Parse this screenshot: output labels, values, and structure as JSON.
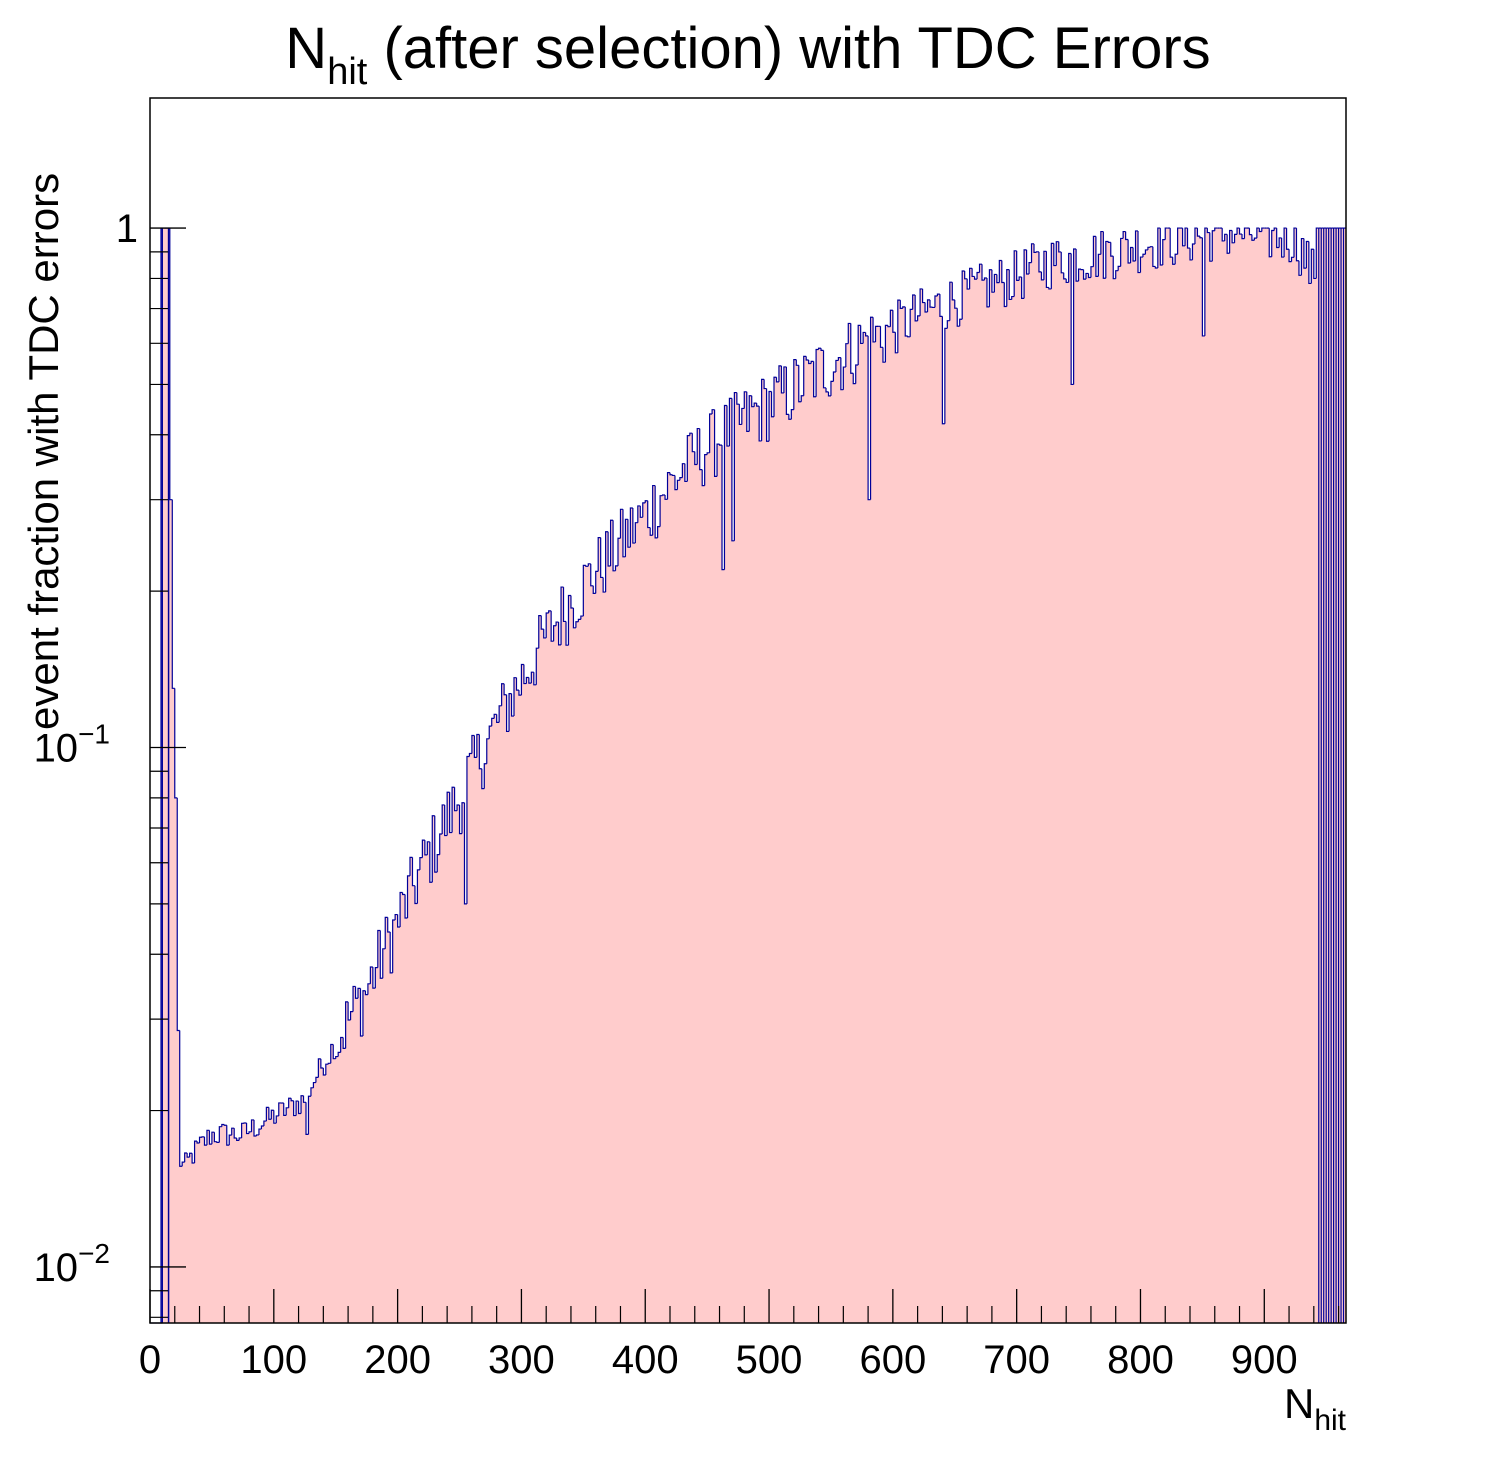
{
  "chart_data": {
    "type": "histogram",
    "title": {
      "main": "N",
      "sub": "hit",
      "rest": " (after selection) with TDC Errors"
    },
    "xlabel": {
      "main": "N",
      "sub": "hit"
    },
    "ylabel": "event fraction with TDC errors",
    "x_range": [
      0,
      966
    ],
    "y_range": [
      0.0078,
      1.78
    ],
    "y_scale": "log",
    "x_ticks": [
      "0",
      "100",
      "200",
      "300",
      "400",
      "500",
      "600",
      "700",
      "800",
      "900"
    ],
    "y_ticks": [
      {
        "value": 1,
        "base": "1",
        "exp": ""
      },
      {
        "value": 0.1,
        "base": "10",
        "exp": "−1"
      },
      {
        "value": 0.01,
        "base": "10",
        "exp": "−2"
      }
    ],
    "bin_width": 2,
    "fill_color": "#ffcccc",
    "line_color": "#000099",
    "anchors": [
      [
        1,
        0
      ],
      [
        9,
        0
      ],
      [
        11,
        1.0
      ],
      [
        15,
        1.0
      ],
      [
        17,
        0.3
      ],
      [
        19,
        0.13
      ],
      [
        21,
        0.08
      ],
      [
        23,
        0.028
      ],
      [
        25,
        0.016
      ],
      [
        28,
        0.0155
      ],
      [
        35,
        0.0165
      ],
      [
        50,
        0.018
      ],
      [
        75,
        0.018
      ],
      [
        100,
        0.0195
      ],
      [
        125,
        0.021
      ],
      [
        150,
        0.027
      ],
      [
        175,
        0.034
      ],
      [
        200,
        0.046
      ],
      [
        225,
        0.062
      ],
      [
        250,
        0.08
      ],
      [
        275,
        0.105
      ],
      [
        300,
        0.135
      ],
      [
        325,
        0.17
      ],
      [
        350,
        0.205
      ],
      [
        375,
        0.24
      ],
      [
        400,
        0.28
      ],
      [
        425,
        0.33
      ],
      [
        450,
        0.38
      ],
      [
        475,
        0.42
      ],
      [
        500,
        0.46
      ],
      [
        525,
        0.5
      ],
      [
        550,
        0.55
      ],
      [
        575,
        0.6
      ],
      [
        600,
        0.64
      ],
      [
        625,
        0.69
      ],
      [
        650,
        0.73
      ],
      [
        675,
        0.77
      ],
      [
        700,
        0.81
      ],
      [
        725,
        0.86
      ],
      [
        750,
        0.88
      ],
      [
        775,
        0.9
      ],
      [
        800,
        0.93
      ],
      [
        825,
        0.95
      ],
      [
        850,
        0.97
      ],
      [
        875,
        0.98
      ],
      [
        900,
        0.97
      ],
      [
        925,
        0.96
      ],
      [
        941,
        0.8
      ],
      [
        943,
        1.0
      ],
      [
        966,
        1.0
      ]
    ],
    "dips": [
      [
        255,
        0.05
      ],
      [
        462,
        0.22
      ],
      [
        127,
        0.018
      ],
      [
        850,
        0.62
      ],
      [
        745,
        0.5
      ],
      [
        470,
        0.25
      ],
      [
        640,
        0.42
      ],
      [
        580,
        0.3
      ]
    ]
  }
}
